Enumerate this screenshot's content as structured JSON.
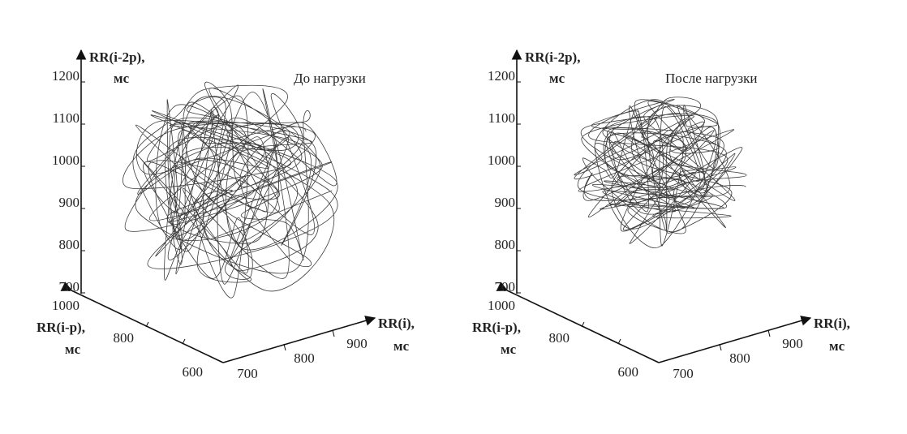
{
  "panels": [
    {
      "title": "До нагрузки",
      "z_axis": {
        "label": "RR(i-2p),",
        "unit": "мс",
        "ticks": [
          "1200",
          "1100",
          "1000",
          "900",
          "800",
          "700"
        ]
      },
      "y_axis": {
        "label": "RR(i-p),",
        "unit": "мс",
        "ticks": [
          "1000",
          "800",
          "600"
        ]
      },
      "x_axis": {
        "label": "RR(i),",
        "unit": "мс",
        "ticks": [
          "700",
          "800",
          "900"
        ]
      }
    },
    {
      "title": "После нагрузки",
      "z_axis": {
        "label": "RR(i-2p),",
        "unit": "мс",
        "ticks": [
          "1200",
          "1100",
          "1000",
          "900",
          "800",
          "700"
        ]
      },
      "y_axis": {
        "label": "RR(i-p),",
        "unit": "мс",
        "ticks": [
          "1000",
          "800",
          "600"
        ]
      },
      "x_axis": {
        "label": "RR(i),",
        "unit": "мс",
        "ticks": [
          "700",
          "800",
          "900"
        ]
      }
    }
  ]
}
